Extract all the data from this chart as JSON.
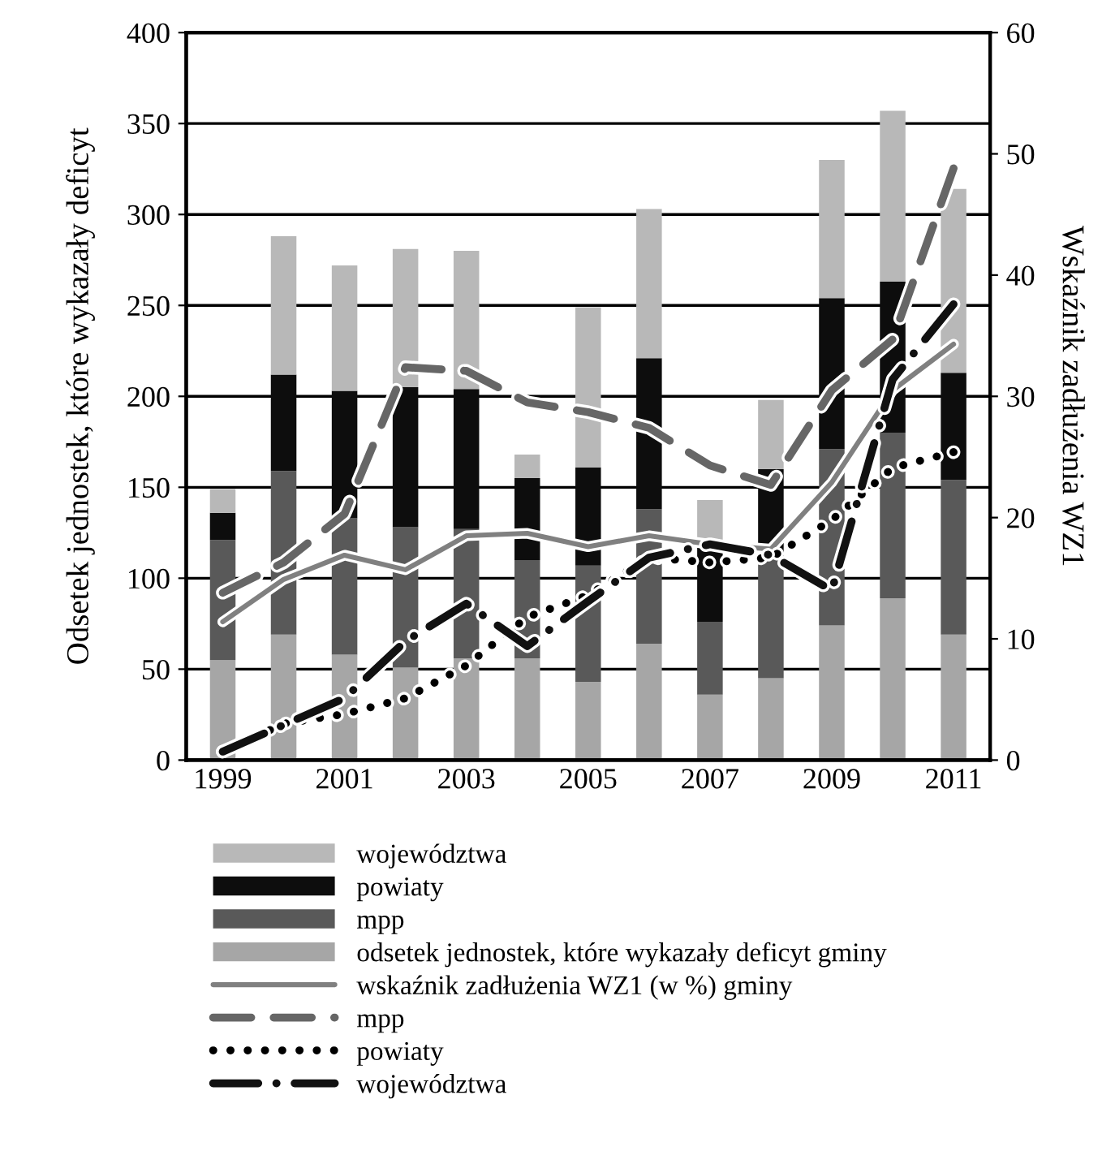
{
  "chart_data": {
    "type": "bar",
    "stacked": true,
    "categories": [
      "1999",
      null,
      "2001",
      null,
      "2003",
      null,
      "2005",
      null,
      "2007",
      null,
      "2009",
      null,
      "2011"
    ],
    "ylabel": "Odsetek jednostek, które wykazały deficyt",
    "y2label": "Wskaźnik zadłużenia WZ1",
    "ylim": [
      0,
      400
    ],
    "yticks": [
      0,
      50,
      100,
      150,
      200,
      250,
      300,
      350,
      400
    ],
    "y2lim": [
      0,
      60
    ],
    "y2ticks": [
      0,
      10,
      20,
      30,
      40,
      50,
      60
    ],
    "grid": "y",
    "legend": "bottom",
    "marker": "none",
    "series": [
      {
        "name": "odsetek jednostek, które wykazały deficyt gminy",
        "color": "#a6a6a6",
        "values": [
          55,
          69,
          58,
          51,
          56,
          56,
          43,
          64,
          36,
          45,
          74,
          89,
          69
        ]
      },
      {
        "name": "mpp",
        "color": "#595959",
        "values": [
          66,
          90,
          75,
          77,
          71,
          54,
          64,
          74,
          40,
          69,
          97,
          91,
          85
        ]
      },
      {
        "name": "powiaty",
        "color": "#0d0d0d",
        "values": [
          15,
          53,
          70,
          77,
          77,
          45,
          54,
          83,
          41,
          46,
          83,
          83,
          59
        ]
      },
      {
        "name": "województwa",
        "color": "#b8b8b8",
        "values": [
          13,
          76,
          69,
          76,
          76,
          13,
          88,
          82,
          26,
          38,
          76,
          94,
          101
        ]
      },
      {
        "name": "wskaźnik zadłużenia WZ1 (w %) gminy",
        "type": "line",
        "axis": "y2",
        "line_style": "solid",
        "color": "#808080",
        "values": [
          11.4,
          14.9,
          16.9,
          15.7,
          18.5,
          18.7,
          17.6,
          18.5,
          17.8,
          17.4,
          22.9,
          30.5,
          34.3
        ]
      },
      {
        "name": "mpp",
        "type": "line",
        "axis": "y2",
        "line_style": "dashed",
        "color": "#666666",
        "values": [
          13.8,
          16.3,
          20.3,
          32.4,
          32.1,
          29.5,
          28.7,
          27.4,
          24.3,
          22.7,
          30.5,
          34.7,
          48.8
        ]
      },
      {
        "name": "powiaty",
        "type": "line",
        "axis": "y2",
        "line_style": "dotted",
        "color": "#000000",
        "values": [
          0.7,
          3.0,
          3.8,
          5.1,
          7.8,
          11.8,
          13.6,
          16.7,
          16.3,
          16.7,
          19.8,
          24.1,
          25.4
        ]
      },
      {
        "name": "województwa",
        "type": "line",
        "axis": "y2",
        "line_style": "dashdot",
        "color": "#111111",
        "values": [
          0.7,
          2.9,
          5.1,
          9.8,
          12.9,
          9.4,
          13.1,
          16.7,
          17.8,
          16.9,
          14.0,
          31.4,
          37.6
        ]
      }
    ]
  }
}
